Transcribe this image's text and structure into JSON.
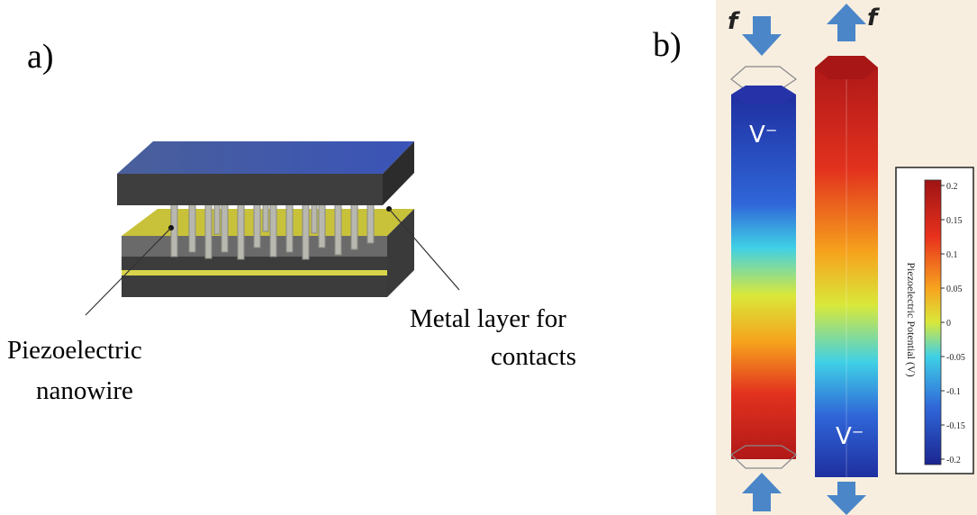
{
  "panel_a": {
    "label": "a)",
    "nanowire_label": [
      "Piezoelectric",
      "nanowire"
    ],
    "metal_label": [
      "Metal layer for",
      "contacts"
    ]
  },
  "panel_b": {
    "label": "b)",
    "force_top": "f",
    "force_top_right": "f",
    "rod_left_charge": "V⁻",
    "rod_right_charge": "V⁻",
    "colorbar": {
      "title": "Piezoelectric Potential (V)",
      "ticks": [
        "0.2",
        "0.15",
        "0.1",
        "0.05",
        "0",
        "-0.05",
        "-0.1",
        "-0.15",
        "-0.2"
      ]
    }
  }
}
